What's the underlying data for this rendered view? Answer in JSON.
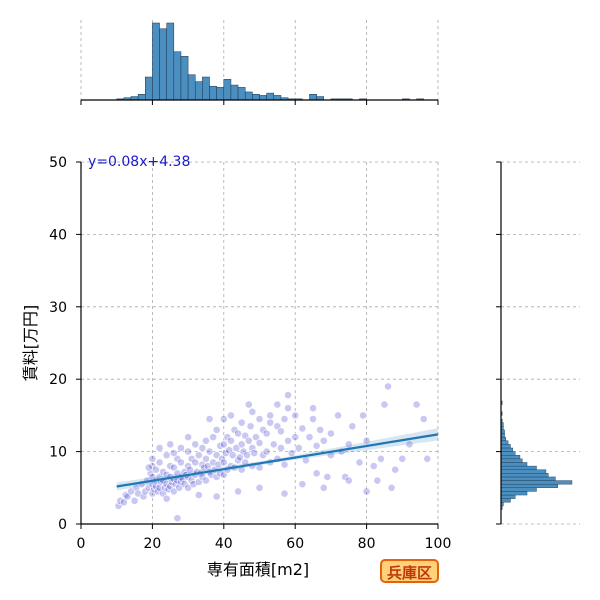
{
  "chart_data": {
    "type": "scatter",
    "xlabel": "専有面積[m2]",
    "ylabel": "賃料[万円]",
    "xlim": [
      0,
      100
    ],
    "ylim": [
      0,
      50
    ],
    "x_ticks": [
      0,
      20,
      40,
      60,
      80,
      100
    ],
    "y_ticks": [
      0,
      10,
      20,
      30,
      40,
      50
    ],
    "grid": true,
    "annotation": "y=0.08x+4.38",
    "badge": "兵庫区",
    "regression": {
      "slope": 0.08,
      "intercept": 4.38,
      "x_range": [
        10,
        100
      ]
    },
    "colors": {
      "points": "#3a3ad0",
      "regression": "#1f77b4",
      "histogram": "#4a8fc0",
      "annotation": "#1a1acc",
      "badge_bg": "#ffd27a",
      "badge_border": "#e8620a"
    },
    "x_histogram": {
      "bin_width": 2,
      "bins": [
        {
          "x": 10,
          "count": 1
        },
        {
          "x": 12,
          "count": 2
        },
        {
          "x": 14,
          "count": 3
        },
        {
          "x": 16,
          "count": 5
        },
        {
          "x": 18,
          "count": 20
        },
        {
          "x": 20,
          "count": 67
        },
        {
          "x": 22,
          "count": 62
        },
        {
          "x": 24,
          "count": 67
        },
        {
          "x": 26,
          "count": 42
        },
        {
          "x": 28,
          "count": 38
        },
        {
          "x": 30,
          "count": 22
        },
        {
          "x": 32,
          "count": 16
        },
        {
          "x": 34,
          "count": 20
        },
        {
          "x": 36,
          "count": 12
        },
        {
          "x": 38,
          "count": 11
        },
        {
          "x": 40,
          "count": 18
        },
        {
          "x": 42,
          "count": 13
        },
        {
          "x": 44,
          "count": 11
        },
        {
          "x": 46,
          "count": 7
        },
        {
          "x": 48,
          "count": 5
        },
        {
          "x": 50,
          "count": 4
        },
        {
          "x": 52,
          "count": 6
        },
        {
          "x": 54,
          "count": 4
        },
        {
          "x": 56,
          "count": 2
        },
        {
          "x": 58,
          "count": 1
        },
        {
          "x": 60,
          "count": 1
        },
        {
          "x": 62,
          "count": 0
        },
        {
          "x": 64,
          "count": 5
        },
        {
          "x": 66,
          "count": 3
        },
        {
          "x": 68,
          "count": 0
        },
        {
          "x": 70,
          "count": 1
        },
        {
          "x": 72,
          "count": 1
        },
        {
          "x": 74,
          "count": 1
        },
        {
          "x": 76,
          "count": 0
        },
        {
          "x": 78,
          "count": 1
        },
        {
          "x": 80,
          "count": 0
        },
        {
          "x": 82,
          "count": 0
        },
        {
          "x": 84,
          "count": 0
        },
        {
          "x": 86,
          "count": 0
        },
        {
          "x": 88,
          "count": 0
        },
        {
          "x": 90,
          "count": 1
        },
        {
          "x": 92,
          "count": 0
        },
        {
          "x": 94,
          "count": 1
        }
      ]
    },
    "y_histogram": {
      "bin_width": 0.5,
      "bins": [
        {
          "y": 2.0,
          "count": 1
        },
        {
          "y": 2.5,
          "count": 2
        },
        {
          "y": 3.0,
          "count": 8
        },
        {
          "y": 3.5,
          "count": 12
        },
        {
          "y": 4.0,
          "count": 22
        },
        {
          "y": 4.5,
          "count": 30
        },
        {
          "y": 5.0,
          "count": 48
        },
        {
          "y": 5.5,
          "count": 60
        },
        {
          "y": 6.0,
          "count": 46
        },
        {
          "y": 6.5,
          "count": 40
        },
        {
          "y": 7.0,
          "count": 38
        },
        {
          "y": 7.5,
          "count": 30
        },
        {
          "y": 8.0,
          "count": 22
        },
        {
          "y": 8.5,
          "count": 18
        },
        {
          "y": 9.0,
          "count": 16
        },
        {
          "y": 9.5,
          "count": 12
        },
        {
          "y": 10.0,
          "count": 10
        },
        {
          "y": 10.5,
          "count": 8
        },
        {
          "y": 11.0,
          "count": 6
        },
        {
          "y": 11.5,
          "count": 4
        },
        {
          "y": 12.0,
          "count": 3
        },
        {
          "y": 12.5,
          "count": 3
        },
        {
          "y": 13.0,
          "count": 2
        },
        {
          "y": 13.5,
          "count": 2
        },
        {
          "y": 14.0,
          "count": 1
        },
        {
          "y": 15.0,
          "count": 1
        },
        {
          "y": 16.5,
          "count": 1
        }
      ]
    },
    "points": [
      [
        10.5,
        2.5
      ],
      [
        11,
        3.2
      ],
      [
        12,
        3.0
      ],
      [
        12.5,
        4.0
      ],
      [
        13,
        3.8
      ],
      [
        14,
        4.5
      ],
      [
        15,
        3.2
      ],
      [
        15.5,
        5.0
      ],
      [
        16,
        4.2
      ],
      [
        17,
        5.5
      ],
      [
        17.5,
        3.8
      ],
      [
        18,
        4.5
      ],
      [
        18.5,
        6.0
      ],
      [
        19,
        5.0
      ],
      [
        19.5,
        7.0
      ],
      [
        20,
        4.2
      ],
      [
        20,
        5.5
      ],
      [
        20,
        6.5
      ],
      [
        20,
        8.0
      ],
      [
        20,
        9.0
      ],
      [
        20.5,
        4.8
      ],
      [
        21,
        5.2
      ],
      [
        21,
        6.0
      ],
      [
        21,
        7.5
      ],
      [
        21.5,
        4.5
      ],
      [
        22,
        5.0
      ],
      [
        22,
        6.5
      ],
      [
        22,
        8.5
      ],
      [
        22.5,
        5.8
      ],
      [
        23,
        4.2
      ],
      [
        23,
        6.0
      ],
      [
        23,
        7.2
      ],
      [
        23.5,
        5.0
      ],
      [
        24,
        5.5
      ],
      [
        24,
        6.8
      ],
      [
        24,
        9.5
      ],
      [
        24.5,
        4.8
      ],
      [
        25,
        5.2
      ],
      [
        25,
        6.5
      ],
      [
        25,
        8.0
      ],
      [
        25,
        11.0
      ],
      [
        25.5,
        5.8
      ],
      [
        26,
        4.5
      ],
      [
        26,
        6.2
      ],
      [
        26,
        7.8
      ],
      [
        26.5,
        5.5
      ],
      [
        27,
        6.0
      ],
      [
        27,
        7.0
      ],
      [
        27,
        9.0
      ],
      [
        27.5,
        5.0
      ],
      [
        28,
        5.8
      ],
      [
        28,
        6.5
      ],
      [
        28,
        8.5
      ],
      [
        28,
        10.5
      ],
      [
        28.5,
        6.2
      ],
      [
        29,
        5.5
      ],
      [
        29,
        7.2
      ],
      [
        29.5,
        6.8
      ],
      [
        30,
        5.0
      ],
      [
        30,
        6.5
      ],
      [
        30,
        8.0
      ],
      [
        30,
        10.0
      ],
      [
        30.5,
        7.5
      ],
      [
        31,
        6.0
      ],
      [
        31,
        9.0
      ],
      [
        31.5,
        5.5
      ],
      [
        32,
        6.8
      ],
      [
        32,
        8.5
      ],
      [
        32,
        11.0
      ],
      [
        32.5,
        7.2
      ],
      [
        33,
        5.8
      ],
      [
        33,
        9.5
      ],
      [
        33.5,
        7.0
      ],
      [
        34,
        6.5
      ],
      [
        34,
        8.2
      ],
      [
        34,
        10.5
      ],
      [
        34.5,
        7.8
      ],
      [
        35,
        6.0
      ],
      [
        35,
        9.0
      ],
      [
        35,
        11.5
      ],
      [
        35.5,
        8.0
      ],
      [
        36,
        7.2
      ],
      [
        36,
        10.0
      ],
      [
        36.5,
        6.8
      ],
      [
        37,
        8.5
      ],
      [
        37,
        12.0
      ],
      [
        37.5,
        7.5
      ],
      [
        38,
        6.5
      ],
      [
        38,
        9.5
      ],
      [
        38,
        13.0
      ],
      [
        38.5,
        8.2
      ],
      [
        39,
        7.0
      ],
      [
        39,
        10.8
      ],
      [
        39.5,
        9.0
      ],
      [
        40,
        6.8
      ],
      [
        40,
        8.5
      ],
      [
        40,
        11.0
      ],
      [
        40,
        14.5
      ],
      [
        40.5,
        9.8
      ],
      [
        41,
        7.5
      ],
      [
        41,
        12.0
      ],
      [
        41.5,
        10.2
      ],
      [
        42,
        8.0
      ],
      [
        42,
        11.5
      ],
      [
        42,
        15.0
      ],
      [
        42.5,
        9.5
      ],
      [
        43,
        7.8
      ],
      [
        43,
        13.0
      ],
      [
        43.5,
        10.5
      ],
      [
        44,
        8.8
      ],
      [
        44,
        12.5
      ],
      [
        44.5,
        9.2
      ],
      [
        45,
        7.5
      ],
      [
        45,
        11.0
      ],
      [
        45,
        14.0
      ],
      [
        45.5,
        10.0
      ],
      [
        46,
        8.5
      ],
      [
        46,
        12.2
      ],
      [
        46.5,
        9.5
      ],
      [
        47,
        11.5
      ],
      [
        47.5,
        13.5
      ],
      [
        48,
        8.0
      ],
      [
        48,
        10.5
      ],
      [
        48,
        15.5
      ],
      [
        48.5,
        9.8
      ],
      [
        49,
        12.0
      ],
      [
        50,
        7.8
      ],
      [
        50,
        11.2
      ],
      [
        50,
        14.5
      ],
      [
        51,
        9.5
      ],
      [
        51,
        13.0
      ],
      [
        52,
        10.0
      ],
      [
        52,
        12.5
      ],
      [
        53,
        8.5
      ],
      [
        53,
        14.0
      ],
      [
        54,
        11.0
      ],
      [
        55,
        9.0
      ],
      [
        55,
        13.5
      ],
      [
        55,
        16.5
      ],
      [
        56,
        10.5
      ],
      [
        56,
        12.8
      ],
      [
        57,
        8.2
      ],
      [
        57,
        14.5
      ],
      [
        58,
        11.5
      ],
      [
        58,
        16.0
      ],
      [
        59,
        9.8
      ],
      [
        60,
        12.0
      ],
      [
        60,
        15.0
      ],
      [
        61,
        10.5
      ],
      [
        62,
        13.2
      ],
      [
        63,
        8.8
      ],
      [
        64,
        12.0
      ],
      [
        65,
        14.5
      ],
      [
        66,
        7.0
      ],
      [
        66,
        10.8
      ],
      [
        67,
        13.0
      ],
      [
        68,
        11.5
      ],
      [
        69,
        6.5
      ],
      [
        70,
        9.5
      ],
      [
        70,
        12.5
      ],
      [
        72,
        15.0
      ],
      [
        73,
        10.0
      ],
      [
        74,
        6.5
      ],
      [
        75,
        11.0
      ],
      [
        76,
        13.5
      ],
      [
        78,
        8.5
      ],
      [
        79,
        15.0
      ],
      [
        80,
        11.5
      ],
      [
        82,
        8.0
      ],
      [
        83,
        6.0
      ],
      [
        84,
        9.0
      ],
      [
        85,
        16.5
      ],
      [
        86,
        19.0
      ],
      [
        88,
        7.5
      ],
      [
        90,
        9.0
      ],
      [
        92,
        11.0
      ],
      [
        94,
        16.5
      ],
      [
        96,
        14.5
      ],
      [
        97,
        9.0
      ],
      [
        65,
        16.0
      ],
      [
        58,
        17.8
      ],
      [
        53,
        15.0
      ],
      [
        47,
        16.5
      ],
      [
        36,
        14.5
      ],
      [
        30,
        12.0
      ],
      [
        26,
        9.8
      ],
      [
        22,
        10.5
      ],
      [
        19,
        7.8
      ],
      [
        24,
        3.5
      ],
      [
        27,
        0.8
      ],
      [
        33,
        4.0
      ],
      [
        38,
        3.8
      ],
      [
        44,
        4.5
      ],
      [
        50,
        5.0
      ],
      [
        57,
        4.2
      ],
      [
        62,
        5.5
      ],
      [
        68,
        5.0
      ],
      [
        75,
        6.0
      ],
      [
        80,
        4.5
      ],
      [
        87,
        5.0
      ]
    ]
  }
}
